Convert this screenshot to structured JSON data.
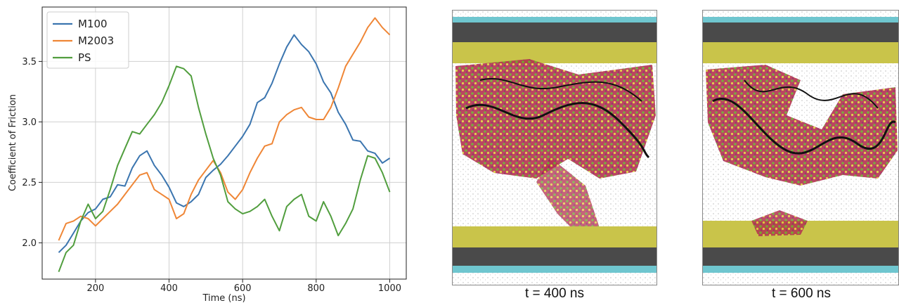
{
  "chart_data": {
    "type": "line",
    "title": "",
    "xlabel": "Time (ns)",
    "ylabel": "Coefficient of Friction",
    "xlim": [
      55,
      1045
    ],
    "ylim": [
      1.7,
      3.95
    ],
    "xticks": [
      200,
      400,
      600,
      800,
      1000
    ],
    "yticks": [
      2.0,
      2.5,
      3.0,
      3.5
    ],
    "grid": true,
    "legend": "top-left",
    "series": [
      {
        "name": "M100",
        "color": "#3b75af",
        "x": [
          100,
          120,
          140,
          160,
          180,
          200,
          220,
          240,
          260,
          280,
          300,
          320,
          340,
          360,
          380,
          400,
          420,
          440,
          460,
          480,
          500,
          520,
          540,
          560,
          580,
          600,
          620,
          640,
          660,
          680,
          700,
          720,
          740,
          760,
          780,
          800,
          820,
          840,
          860,
          880,
          900,
          920,
          940,
          960,
          980,
          1000
        ],
        "y": [
          1.92,
          1.98,
          2.08,
          2.18,
          2.25,
          2.28,
          2.36,
          2.38,
          2.48,
          2.47,
          2.62,
          2.72,
          2.76,
          2.64,
          2.56,
          2.46,
          2.33,
          2.3,
          2.34,
          2.4,
          2.54,
          2.6,
          2.65,
          2.72,
          2.8,
          2.88,
          2.98,
          3.16,
          3.2,
          3.32,
          3.48,
          3.62,
          3.72,
          3.64,
          3.58,
          3.48,
          3.33,
          3.24,
          3.08,
          2.98,
          2.85,
          2.84,
          2.76,
          2.74,
          2.66,
          2.7
        ]
      },
      {
        "name": "M2003",
        "color": "#ef8636",
        "x": [
          100,
          120,
          140,
          160,
          180,
          200,
          220,
          240,
          260,
          280,
          300,
          320,
          340,
          360,
          380,
          400,
          420,
          440,
          460,
          480,
          500,
          520,
          540,
          560,
          580,
          600,
          620,
          640,
          660,
          680,
          700,
          720,
          740,
          760,
          780,
          800,
          820,
          840,
          860,
          880,
          900,
          920,
          940,
          960,
          980,
          1000
        ],
        "y": [
          2.02,
          2.16,
          2.18,
          2.22,
          2.2,
          2.14,
          2.2,
          2.26,
          2.32,
          2.4,
          2.48,
          2.56,
          2.58,
          2.44,
          2.4,
          2.36,
          2.2,
          2.24,
          2.4,
          2.52,
          2.6,
          2.68,
          2.58,
          2.42,
          2.36,
          2.44,
          2.58,
          2.7,
          2.8,
          2.82,
          3.0,
          3.06,
          3.1,
          3.12,
          3.04,
          3.02,
          3.02,
          3.12,
          3.28,
          3.46,
          3.56,
          3.66,
          3.78,
          3.86,
          3.78,
          3.72
        ]
      },
      {
        "name": "PS",
        "color": "#519e3e",
        "x": [
          100,
          120,
          140,
          160,
          180,
          200,
          220,
          240,
          260,
          280,
          300,
          320,
          340,
          360,
          380,
          400,
          420,
          440,
          460,
          480,
          500,
          520,
          540,
          560,
          580,
          600,
          620,
          640,
          660,
          680,
          700,
          720,
          740,
          760,
          780,
          800,
          820,
          840,
          860,
          880,
          900,
          920,
          940,
          960,
          980,
          1000
        ],
        "y": [
          1.76,
          1.92,
          1.98,
          2.18,
          2.32,
          2.2,
          2.26,
          2.44,
          2.64,
          2.78,
          2.92,
          2.9,
          2.98,
          3.06,
          3.16,
          3.3,
          3.46,
          3.44,
          3.38,
          3.12,
          2.9,
          2.7,
          2.56,
          2.34,
          2.28,
          2.24,
          2.26,
          2.3,
          2.36,
          2.22,
          2.1,
          2.3,
          2.36,
          2.4,
          2.22,
          2.18,
          2.34,
          2.22,
          2.06,
          2.16,
          2.28,
          2.52,
          2.72,
          2.7,
          2.58,
          2.42
        ]
      }
    ]
  },
  "snapshots": [
    {
      "caption": "t = 400 ns"
    },
    {
      "caption": "t = 600 ns"
    }
  ]
}
